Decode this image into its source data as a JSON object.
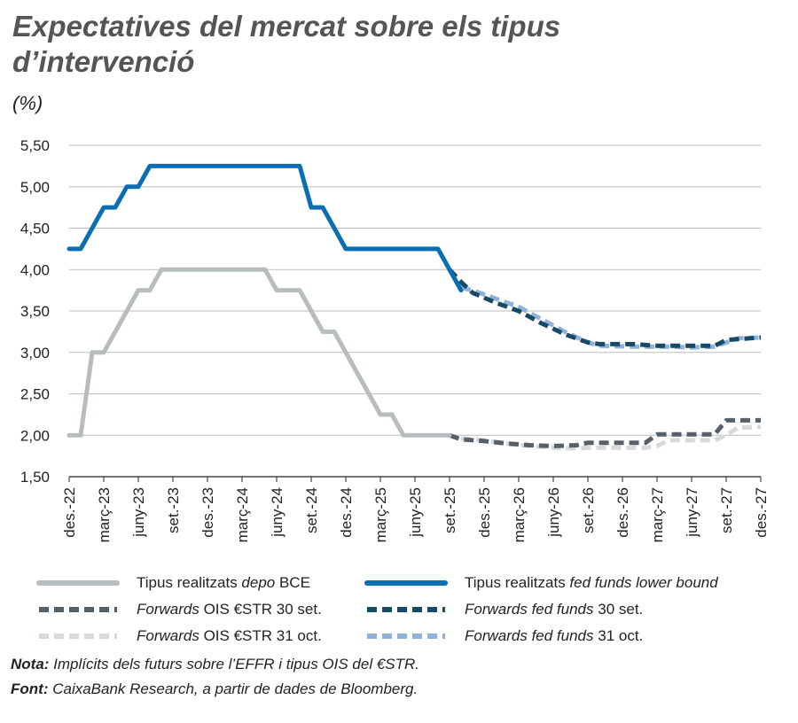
{
  "header": {
    "title_line1": "Expectatives del mercat sobre els tipus",
    "title_line2": "d’intervenció",
    "unit": "(%)"
  },
  "footer": {
    "nota_label": "Nota:",
    "nota_text": " Implícits dels futurs sobre l’EFFR i tipus OIS del €STR.",
    "font_label": "Font:",
    "font_text": " CaixaBank Research, a partir de dades de Bloomberg."
  },
  "legend": [
    {
      "prefix": "Tipus realitzats ",
      "em": "depo",
      "suffix": " BCE",
      "color": "#b7bdbf",
      "style": "solid"
    },
    {
      "prefix": "Tipus realitzats ",
      "em": "fed funds lower bound",
      "suffix": "",
      "color": "#0a6eb4",
      "style": "solid"
    },
    {
      "prefix": "",
      "em": "Forwards",
      "suffix": " OIS €STR 30 set.",
      "color": "#566066",
      "style": "dashed"
    },
    {
      "prefix": "",
      "em": "Forwards fed funds",
      "suffix": " 30 set.",
      "color": "#174a66",
      "style": "dashed"
    },
    {
      "prefix": "",
      "em": "Forwards",
      "suffix": " OIS €STR 31 oct.",
      "color": "#d6dadb",
      "style": "dashed"
    },
    {
      "prefix": "",
      "em": "Forwards fed funds",
      "suffix": " 31 oct.",
      "color": "#8fb1dc",
      "style": "dashed"
    }
  ],
  "chart_data": {
    "type": "line",
    "ylabel": "(%)",
    "ylim": [
      1.5,
      5.5
    ],
    "yticks": [
      "1,50",
      "2,00",
      "2,50",
      "3,00",
      "3,50",
      "4,00",
      "4,50",
      "5,00",
      "5,50"
    ],
    "ytick_values": [
      1.5,
      2.0,
      2.5,
      3.0,
      3.5,
      4.0,
      4.5,
      5.0,
      5.5
    ],
    "grid": true,
    "legend_position": "bottom",
    "xlim": [
      "2022-12",
      "2027-12"
    ],
    "xticks": [
      {
        "label": "des.-22",
        "x": "2022-12"
      },
      {
        "label": "març-23",
        "x": "2023-03"
      },
      {
        "label": "juny-23",
        "x": "2023-06"
      },
      {
        "label": "set.-23",
        "x": "2023-09"
      },
      {
        "label": "des.-23",
        "x": "2023-12"
      },
      {
        "label": "març-24",
        "x": "2024-03"
      },
      {
        "label": "juny-24",
        "x": "2024-06"
      },
      {
        "label": "set.-24",
        "x": "2024-09"
      },
      {
        "label": "des.-24",
        "x": "2024-12"
      },
      {
        "label": "març-25",
        "x": "2025-03"
      },
      {
        "label": "juny-25",
        "x": "2025-06"
      },
      {
        "label": "set.-25",
        "x": "2025-09"
      },
      {
        "label": "des.-25",
        "x": "2025-12"
      },
      {
        "label": "març-26",
        "x": "2026-03"
      },
      {
        "label": "juny-26",
        "x": "2026-06"
      },
      {
        "label": "set.-26",
        "x": "2026-09"
      },
      {
        "label": "des.-26",
        "x": "2026-12"
      },
      {
        "label": "març-27",
        "x": "2027-03"
      },
      {
        "label": "juny-27",
        "x": "2027-06"
      },
      {
        "label": "set.-27",
        "x": "2027-09"
      },
      {
        "label": "des.-27",
        "x": "2027-12"
      }
    ],
    "series": [
      {
        "name": "Tipus realitzats depo BCE",
        "color": "#b7bdbf",
        "style": "solid",
        "points": [
          [
            "2022-12",
            2.0
          ],
          [
            "2023-01",
            2.0
          ],
          [
            "2023-02",
            3.0
          ],
          [
            "2023-03",
            3.0
          ],
          [
            "2023-04",
            3.25
          ],
          [
            "2023-05",
            3.5
          ],
          [
            "2023-06",
            3.75
          ],
          [
            "2023-07",
            3.75
          ],
          [
            "2023-08",
            4.0
          ],
          [
            "2023-09",
            4.0
          ],
          [
            "2023-10",
            4.0
          ],
          [
            "2023-11",
            4.0
          ],
          [
            "2023-12",
            4.0
          ],
          [
            "2024-01",
            4.0
          ],
          [
            "2024-02",
            4.0
          ],
          [
            "2024-03",
            4.0
          ],
          [
            "2024-04",
            4.0
          ],
          [
            "2024-05",
            4.0
          ],
          [
            "2024-06",
            3.75
          ],
          [
            "2024-07",
            3.75
          ],
          [
            "2024-08",
            3.75
          ],
          [
            "2024-09",
            3.5
          ],
          [
            "2024-10",
            3.25
          ],
          [
            "2024-11",
            3.25
          ],
          [
            "2024-12",
            3.0
          ],
          [
            "2025-01",
            2.75
          ],
          [
            "2025-02",
            2.5
          ],
          [
            "2025-03",
            2.25
          ],
          [
            "2025-04",
            2.25
          ],
          [
            "2025-05",
            2.0
          ],
          [
            "2025-06",
            2.0
          ],
          [
            "2025-07",
            2.0
          ],
          [
            "2025-08",
            2.0
          ],
          [
            "2025-09",
            2.0
          ]
        ]
      },
      {
        "name": "Tipus realitzats fed funds lower bound",
        "color": "#0a6eb4",
        "style": "solid",
        "points": [
          [
            "2022-12",
            4.25
          ],
          [
            "2023-01",
            4.25
          ],
          [
            "2023-02",
            4.5
          ],
          [
            "2023-03",
            4.75
          ],
          [
            "2023-04",
            4.75
          ],
          [
            "2023-05",
            5.0
          ],
          [
            "2023-06",
            5.0
          ],
          [
            "2023-07",
            5.25
          ],
          [
            "2023-08",
            5.25
          ],
          [
            "2023-09",
            5.25
          ],
          [
            "2023-10",
            5.25
          ],
          [
            "2023-11",
            5.25
          ],
          [
            "2023-12",
            5.25
          ],
          [
            "2024-01",
            5.25
          ],
          [
            "2024-02",
            5.25
          ],
          [
            "2024-03",
            5.25
          ],
          [
            "2024-04",
            5.25
          ],
          [
            "2024-05",
            5.25
          ],
          [
            "2024-06",
            5.25
          ],
          [
            "2024-07",
            5.25
          ],
          [
            "2024-08",
            5.25
          ],
          [
            "2024-09",
            4.75
          ],
          [
            "2024-10",
            4.75
          ],
          [
            "2024-11",
            4.5
          ],
          [
            "2024-12",
            4.25
          ],
          [
            "2025-01",
            4.25
          ],
          [
            "2025-02",
            4.25
          ],
          [
            "2025-03",
            4.25
          ],
          [
            "2025-04",
            4.25
          ],
          [
            "2025-05",
            4.25
          ],
          [
            "2025-06",
            4.25
          ],
          [
            "2025-07",
            4.25
          ],
          [
            "2025-08",
            4.25
          ],
          [
            "2025-09",
            4.0
          ],
          [
            "2025-10",
            3.75
          ]
        ]
      },
      {
        "name": "Forwards OIS €STR 30 set.",
        "color": "#566066",
        "style": "dashed",
        "points": [
          [
            "2025-09",
            2.0
          ],
          [
            "2025-10",
            1.95
          ],
          [
            "2025-12",
            1.93
          ],
          [
            "2026-02",
            1.9
          ],
          [
            "2026-04",
            1.88
          ],
          [
            "2026-06",
            1.87
          ],
          [
            "2026-08",
            1.88
          ],
          [
            "2026-09",
            1.91
          ],
          [
            "2026-12",
            1.91
          ],
          [
            "2027-02",
            1.91
          ],
          [
            "2027-03",
            2.01
          ],
          [
            "2027-06",
            2.01
          ],
          [
            "2027-08",
            2.01
          ],
          [
            "2027-09",
            2.18
          ],
          [
            "2027-12",
            2.18
          ]
        ]
      },
      {
        "name": "Forwards fed funds 30 set.",
        "color": "#174a66",
        "style": "dashed",
        "points": [
          [
            "2025-09",
            4.0
          ],
          [
            "2025-10",
            3.85
          ],
          [
            "2025-11",
            3.72
          ],
          [
            "2026-01",
            3.6
          ],
          [
            "2026-03",
            3.5
          ],
          [
            "2026-05",
            3.35
          ],
          [
            "2026-07",
            3.22
          ],
          [
            "2026-09",
            3.12
          ],
          [
            "2026-10",
            3.1
          ],
          [
            "2027-01",
            3.1
          ],
          [
            "2027-03",
            3.08
          ],
          [
            "2027-06",
            3.08
          ],
          [
            "2027-08",
            3.08
          ],
          [
            "2027-09",
            3.15
          ],
          [
            "2027-12",
            3.18
          ]
        ]
      },
      {
        "name": "Forwards OIS €STR 31 oct.",
        "color": "#d6dadb",
        "style": "dashed",
        "points": [
          [
            "2025-10",
            1.96
          ],
          [
            "2025-12",
            1.94
          ],
          [
            "2026-02",
            1.9
          ],
          [
            "2026-04",
            1.87
          ],
          [
            "2026-06",
            1.85
          ],
          [
            "2026-08",
            1.84
          ],
          [
            "2026-09",
            1.85
          ],
          [
            "2027-02",
            1.85
          ],
          [
            "2027-03",
            1.87
          ],
          [
            "2027-04",
            1.94
          ],
          [
            "2027-08",
            1.94
          ],
          [
            "2027-09",
            2.0
          ],
          [
            "2027-10",
            2.09
          ],
          [
            "2027-12",
            2.1
          ]
        ]
      },
      {
        "name": "Forwards fed funds 31 oct.",
        "color": "#8fb1dc",
        "style": "dashed",
        "points": [
          [
            "2025-10",
            3.78
          ],
          [
            "2025-11",
            3.75
          ],
          [
            "2026-01",
            3.65
          ],
          [
            "2026-03",
            3.55
          ],
          [
            "2026-05",
            3.4
          ],
          [
            "2026-07",
            3.25
          ],
          [
            "2026-09",
            3.12
          ],
          [
            "2026-10",
            3.08
          ],
          [
            "2027-01",
            3.07
          ],
          [
            "2027-04",
            3.07
          ],
          [
            "2027-06",
            3.06
          ],
          [
            "2027-08",
            3.07
          ],
          [
            "2027-09",
            3.12
          ],
          [
            "2027-10",
            3.17
          ],
          [
            "2027-12",
            3.18
          ]
        ]
      }
    ]
  }
}
